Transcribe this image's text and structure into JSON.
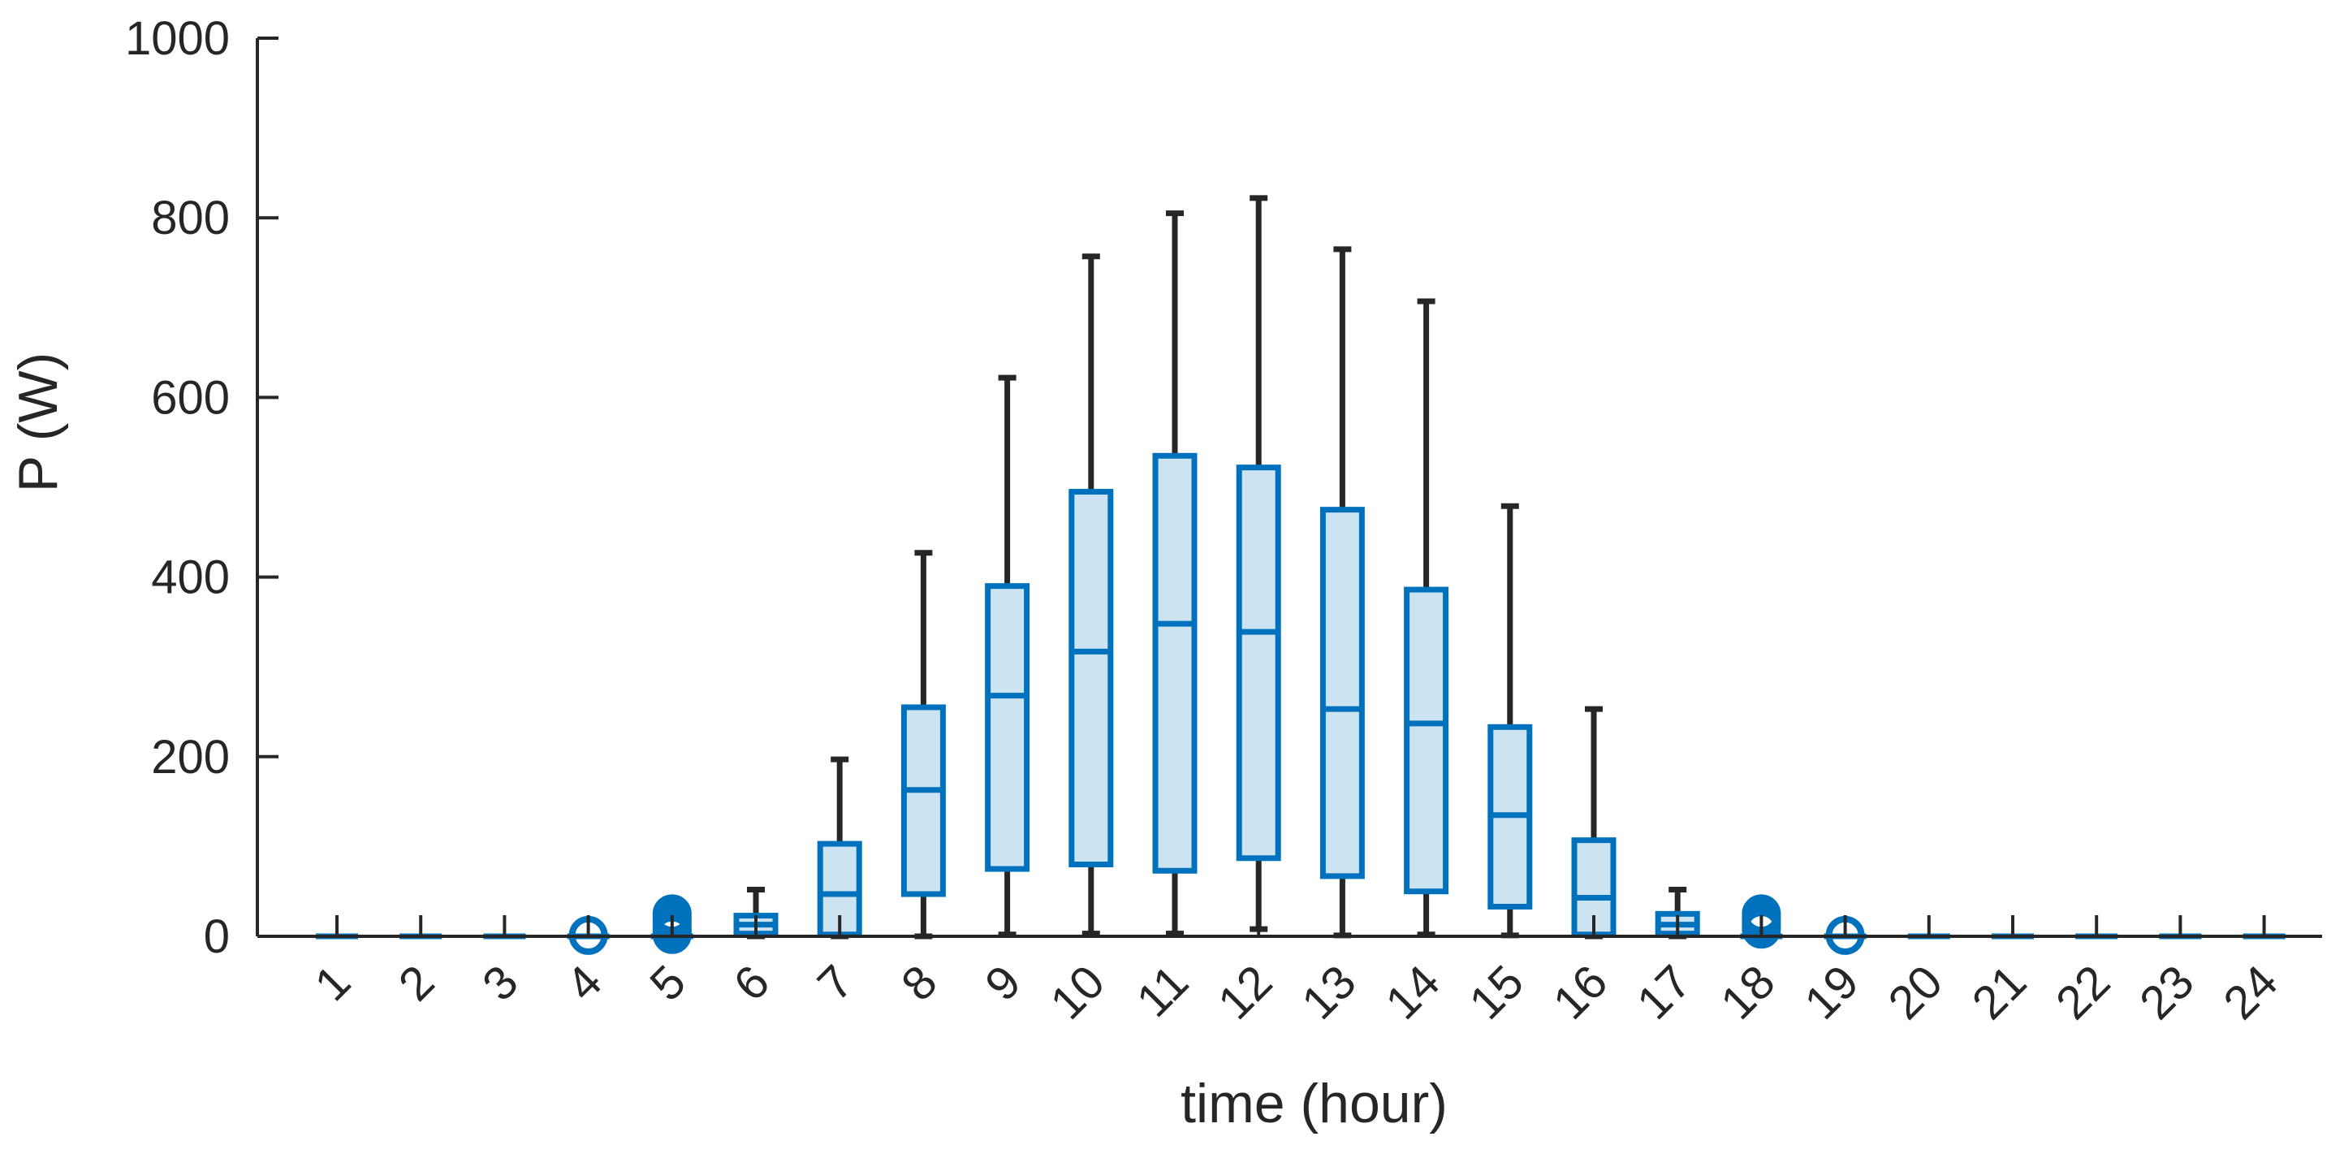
{
  "chart_data": {
    "type": "box",
    "xlabel": "time (hour)",
    "ylabel": "P (W)",
    "ylim": [
      0,
      1000
    ],
    "yticks": [
      0,
      200,
      400,
      600,
      800,
      1000
    ],
    "categories": [
      "1",
      "2",
      "3",
      "4",
      "5",
      "6",
      "7",
      "8",
      "9",
      "10",
      "11",
      "12",
      "13",
      "14",
      "15",
      "16",
      "17",
      "18",
      "19",
      "20",
      "21",
      "22",
      "23",
      "24"
    ],
    "boxes": [
      {
        "hour": "1",
        "whisker_low": 0,
        "q1": 0,
        "median": 0,
        "q3": 0,
        "whisker_high": 0,
        "outliers": []
      },
      {
        "hour": "2",
        "whisker_low": 0,
        "q1": 0,
        "median": 0,
        "q3": 0,
        "whisker_high": 0,
        "outliers": []
      },
      {
        "hour": "3",
        "whisker_low": 0,
        "q1": 0,
        "median": 0,
        "q3": 0,
        "whisker_high": 0,
        "outliers": []
      },
      {
        "hour": "4",
        "whisker_low": 0,
        "q1": 0,
        "median": 0,
        "q3": 0,
        "whisker_high": 0,
        "outliers": [
          1
        ]
      },
      {
        "hour": "5",
        "whisker_low": 0,
        "q1": 0,
        "median": 0,
        "q3": 0,
        "whisker_high": 0,
        "outliers": [
          2,
          5,
          8,
          12,
          16,
          20,
          25
        ]
      },
      {
        "hour": "6",
        "whisker_low": 0,
        "q1": 3,
        "median": 13,
        "q3": 23,
        "whisker_high": 52,
        "outliers": []
      },
      {
        "hour": "7",
        "whisker_low": 0,
        "q1": 2,
        "median": 47,
        "q3": 103,
        "whisker_high": 197,
        "outliers": []
      },
      {
        "hour": "8",
        "whisker_low": 0,
        "q1": 47,
        "median": 163,
        "q3": 255,
        "whisker_high": 427,
        "outliers": []
      },
      {
        "hour": "9",
        "whisker_low": 2,
        "q1": 75,
        "median": 268,
        "q3": 390,
        "whisker_high": 622,
        "outliers": []
      },
      {
        "hour": "10",
        "whisker_low": 3,
        "q1": 80,
        "median": 317,
        "q3": 495,
        "whisker_high": 757,
        "outliers": []
      },
      {
        "hour": "11",
        "whisker_low": 3,
        "q1": 73,
        "median": 348,
        "q3": 535,
        "whisker_high": 805,
        "outliers": []
      },
      {
        "hour": "12",
        "whisker_low": 8,
        "q1": 87,
        "median": 339,
        "q3": 522,
        "whisker_high": 822,
        "outliers": []
      },
      {
        "hour": "13",
        "whisker_low": 1,
        "q1": 67,
        "median": 253,
        "q3": 475,
        "whisker_high": 765,
        "outliers": []
      },
      {
        "hour": "14",
        "whisker_low": 2,
        "q1": 50,
        "median": 237,
        "q3": 386,
        "whisker_high": 707,
        "outliers": []
      },
      {
        "hour": "15",
        "whisker_low": 1,
        "q1": 33,
        "median": 135,
        "q3": 233,
        "whisker_high": 479,
        "outliers": []
      },
      {
        "hour": "16",
        "whisker_low": 0,
        "q1": 2,
        "median": 43,
        "q3": 107,
        "whisker_high": 253,
        "outliers": []
      },
      {
        "hour": "17",
        "whisker_low": 0,
        "q1": 3,
        "median": 13,
        "q3": 25,
        "whisker_high": 52,
        "outliers": []
      },
      {
        "hour": "18",
        "whisker_low": 0,
        "q1": 0,
        "median": 0,
        "q3": 0,
        "whisker_high": 0,
        "outliers": [
          8,
          12,
          16,
          20,
          25
        ]
      },
      {
        "hour": "19",
        "whisker_low": 0,
        "q1": 0,
        "median": 0,
        "q3": 0,
        "whisker_high": 0,
        "outliers": [
          1
        ]
      },
      {
        "hour": "20",
        "whisker_low": 0,
        "q1": 0,
        "median": 0,
        "q3": 0,
        "whisker_high": 0,
        "outliers": []
      },
      {
        "hour": "21",
        "whisker_low": 0,
        "q1": 0,
        "median": 0,
        "q3": 0,
        "whisker_high": 0,
        "outliers": []
      },
      {
        "hour": "22",
        "whisker_low": 0,
        "q1": 0,
        "median": 0,
        "q3": 0,
        "whisker_high": 0,
        "outliers": []
      },
      {
        "hour": "23",
        "whisker_low": 0,
        "q1": 0,
        "median": 0,
        "q3": 0,
        "whisker_high": 0,
        "outliers": []
      },
      {
        "hour": "24",
        "whisker_low": 0,
        "q1": 0,
        "median": 0,
        "q3": 0,
        "whisker_high": 0,
        "outliers": []
      }
    ],
    "grid": false,
    "box_edge_color": "#0072BD",
    "box_fill_color": "#CCE3F2",
    "whisker_color": "#262626",
    "axis_color": "#262626"
  }
}
